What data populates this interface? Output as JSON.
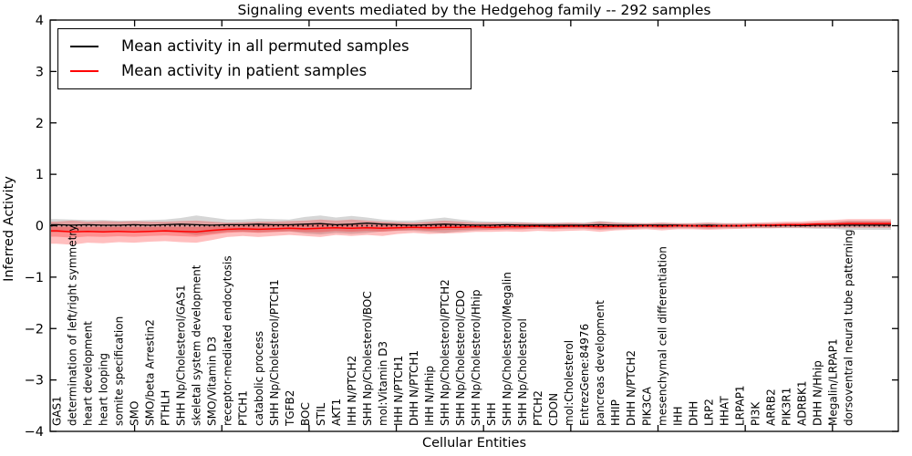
{
  "figure": {
    "background_color": "#ffffff",
    "title": "Signaling events mediated by the Hedgehog family -- 292 samples"
  },
  "legend": {
    "items": [
      {
        "label": "Mean activity in all permuted samples",
        "color": "#000000"
      },
      {
        "label": "Mean activity in patient samples",
        "color": "#ff0000"
      }
    ]
  },
  "chart_data": {
    "type": "line",
    "title": "Signaling events mediated by the Hedgehog family -- 292 samples",
    "xlabel": "Cellular Entities",
    "ylabel": "Inferred Activity",
    "ylim": [
      -4,
      4
    ],
    "yticks": [
      4,
      3,
      2,
      1,
      0,
      -1,
      -2,
      -3,
      -4
    ],
    "grid": false,
    "legend_position": "upper left",
    "zero_line_style": "dotted",
    "sample_count": 292,
    "categories": [
      "GAS1",
      "determination of left/right symmetry",
      "heart development",
      "heart looping",
      "somite specification",
      "SMO",
      "SMO/beta Arrestin2",
      "PTHLH",
      "SHH Np/Cholesterol/GAS1",
      "skeletal system development",
      "SMO/Vitamin D3",
      "receptor-mediated endocytosis",
      "PTCH1",
      "catabolic process",
      "SHH Np/Cholesterol/PTCH1",
      "TGFB2",
      "BOC",
      "STIL",
      "AKT1",
      "IHH N/PTCH2",
      "SHH Np/Cholesterol/BOC",
      "mol:Vitamin D3",
      "IHH N/PTCH1",
      "DHH N/PTCH1",
      "IHH N/Hhip",
      "SHH Np/Cholesterol/PTCH2",
      "SHH Np/Cholesterol/CDO",
      "SHH Np/Cholesterol/Hhip",
      "SHH",
      "SHH Np/Cholesterol/Megalin",
      "SHH Np/Cholesterol",
      "PTCH2",
      "CDON",
      "mol:Cholesterol",
      "EntrezGene:84976",
      "pancreas development",
      "HHIP",
      "DHH N/PTCH2",
      "PIK3CA",
      "mesenchymal cell differentiation",
      "IHH",
      "DHH",
      "LRP2",
      "HHAT",
      "LRPAP1",
      "PI3K",
      "ARRB2",
      "PIK3R1",
      "ADRBK1",
      "DHH N/Hhip",
      "Megalin/LRPAP1",
      "dorsoventral neural tube patterning"
    ],
    "series": [
      {
        "name": "Mean activity in all permuted samples",
        "color": "#000000",
        "band_fill": "rgba(0,0,0,0.16)",
        "values": [
          0.02,
          0.01,
          0.02,
          0.01,
          0.01,
          0.02,
          0.01,
          0.02,
          0.03,
          0.02,
          0.01,
          0.02,
          0.02,
          0.03,
          0.02,
          0.02,
          0.03,
          0.04,
          0.02,
          0.03,
          0.05,
          0.03,
          0.02,
          0.01,
          0.02,
          0.03,
          0.02,
          0.01,
          0.01,
          0.02,
          0.01,
          0.01,
          0.01,
          0.01,
          0.01,
          0.02,
          0.01,
          0.01,
          0.01,
          0.01,
          0.01,
          0.0,
          0.01,
          0.0,
          0.0,
          0.01,
          0.0,
          0.01,
          0.0,
          0.01,
          0.01,
          0.01
        ],
        "band_upper": [
          0.13,
          0.12,
          0.11,
          0.11,
          0.1,
          0.1,
          0.11,
          0.12,
          0.15,
          0.2,
          0.16,
          0.12,
          0.12,
          0.14,
          0.13,
          0.12,
          0.17,
          0.2,
          0.16,
          0.19,
          0.16,
          0.12,
          0.1,
          0.1,
          0.13,
          0.16,
          0.12,
          0.09,
          0.08,
          0.08,
          0.07,
          0.06,
          0.06,
          0.06,
          0.06,
          0.09,
          0.07,
          0.06,
          0.05,
          0.06,
          0.05,
          0.05,
          0.06,
          0.05,
          0.05,
          0.05,
          0.05,
          0.05,
          0.05,
          0.06,
          0.07,
          0.1
        ],
        "band_lower": [
          -0.13,
          -0.12,
          -0.11,
          -0.11,
          -0.1,
          -0.1,
          -0.11,
          -0.12,
          -0.14,
          -0.18,
          -0.15,
          -0.12,
          -0.12,
          -0.13,
          -0.12,
          -0.11,
          -0.15,
          -0.17,
          -0.14,
          -0.16,
          -0.14,
          -0.11,
          -0.1,
          -0.1,
          -0.12,
          -0.14,
          -0.11,
          -0.09,
          -0.08,
          -0.08,
          -0.07,
          -0.06,
          -0.06,
          -0.06,
          -0.06,
          -0.08,
          -0.07,
          -0.06,
          -0.05,
          -0.06,
          -0.05,
          -0.05,
          -0.06,
          -0.05,
          -0.05,
          -0.05,
          -0.05,
          -0.05,
          -0.05,
          -0.06,
          -0.06,
          -0.08
        ]
      },
      {
        "name": "Mean activity in patient samples",
        "color": "#ff0000",
        "band_fill": "rgba(255,0,0,0.25)",
        "values": [
          -0.1,
          -0.12,
          -0.11,
          -0.12,
          -0.11,
          -0.12,
          -0.11,
          -0.1,
          -0.11,
          -0.12,
          -0.09,
          -0.07,
          -0.06,
          -0.07,
          -0.06,
          -0.05,
          -0.06,
          -0.05,
          -0.04,
          -0.05,
          -0.04,
          -0.05,
          -0.04,
          -0.03,
          -0.04,
          -0.03,
          -0.03,
          -0.02,
          -0.03,
          -0.02,
          -0.02,
          -0.01,
          -0.02,
          -0.01,
          -0.01,
          -0.02,
          -0.01,
          -0.01,
          0.0,
          -0.01,
          0.0,
          0.0,
          -0.01,
          0.0,
          0.0,
          0.01,
          0.01,
          0.02,
          0.02,
          0.03,
          0.03,
          0.04
        ],
        "band_upper": [
          0.08,
          0.1,
          0.08,
          0.09,
          0.08,
          0.09,
          0.08,
          0.08,
          0.09,
          0.1,
          0.08,
          0.06,
          0.07,
          0.08,
          0.08,
          0.09,
          0.1,
          0.12,
          0.1,
          0.12,
          0.1,
          0.08,
          0.07,
          0.06,
          0.08,
          0.1,
          0.08,
          0.06,
          0.06,
          0.05,
          0.06,
          0.05,
          0.05,
          0.06,
          0.05,
          0.08,
          0.06,
          0.05,
          0.05,
          0.06,
          0.05,
          0.05,
          0.06,
          0.05,
          0.05,
          0.06,
          0.07,
          0.08,
          0.08,
          0.1,
          0.11,
          0.13
        ],
        "band_lower": [
          -0.35,
          -0.37,
          -0.33,
          -0.34,
          -0.32,
          -0.33,
          -0.31,
          -0.3,
          -0.32,
          -0.33,
          -0.28,
          -0.22,
          -0.2,
          -0.22,
          -0.2,
          -0.18,
          -0.2,
          -0.22,
          -0.18,
          -0.2,
          -0.18,
          -0.2,
          -0.16,
          -0.14,
          -0.16,
          -0.15,
          -0.14,
          -0.12,
          -0.12,
          -0.11,
          -0.12,
          -0.1,
          -0.11,
          -0.1,
          -0.09,
          -0.12,
          -0.09,
          -0.08,
          -0.07,
          -0.09,
          -0.07,
          -0.07,
          -0.08,
          -0.07,
          -0.06,
          -0.05,
          -0.05,
          -0.04,
          -0.04,
          -0.04,
          -0.04,
          -0.04
        ]
      }
    ]
  }
}
